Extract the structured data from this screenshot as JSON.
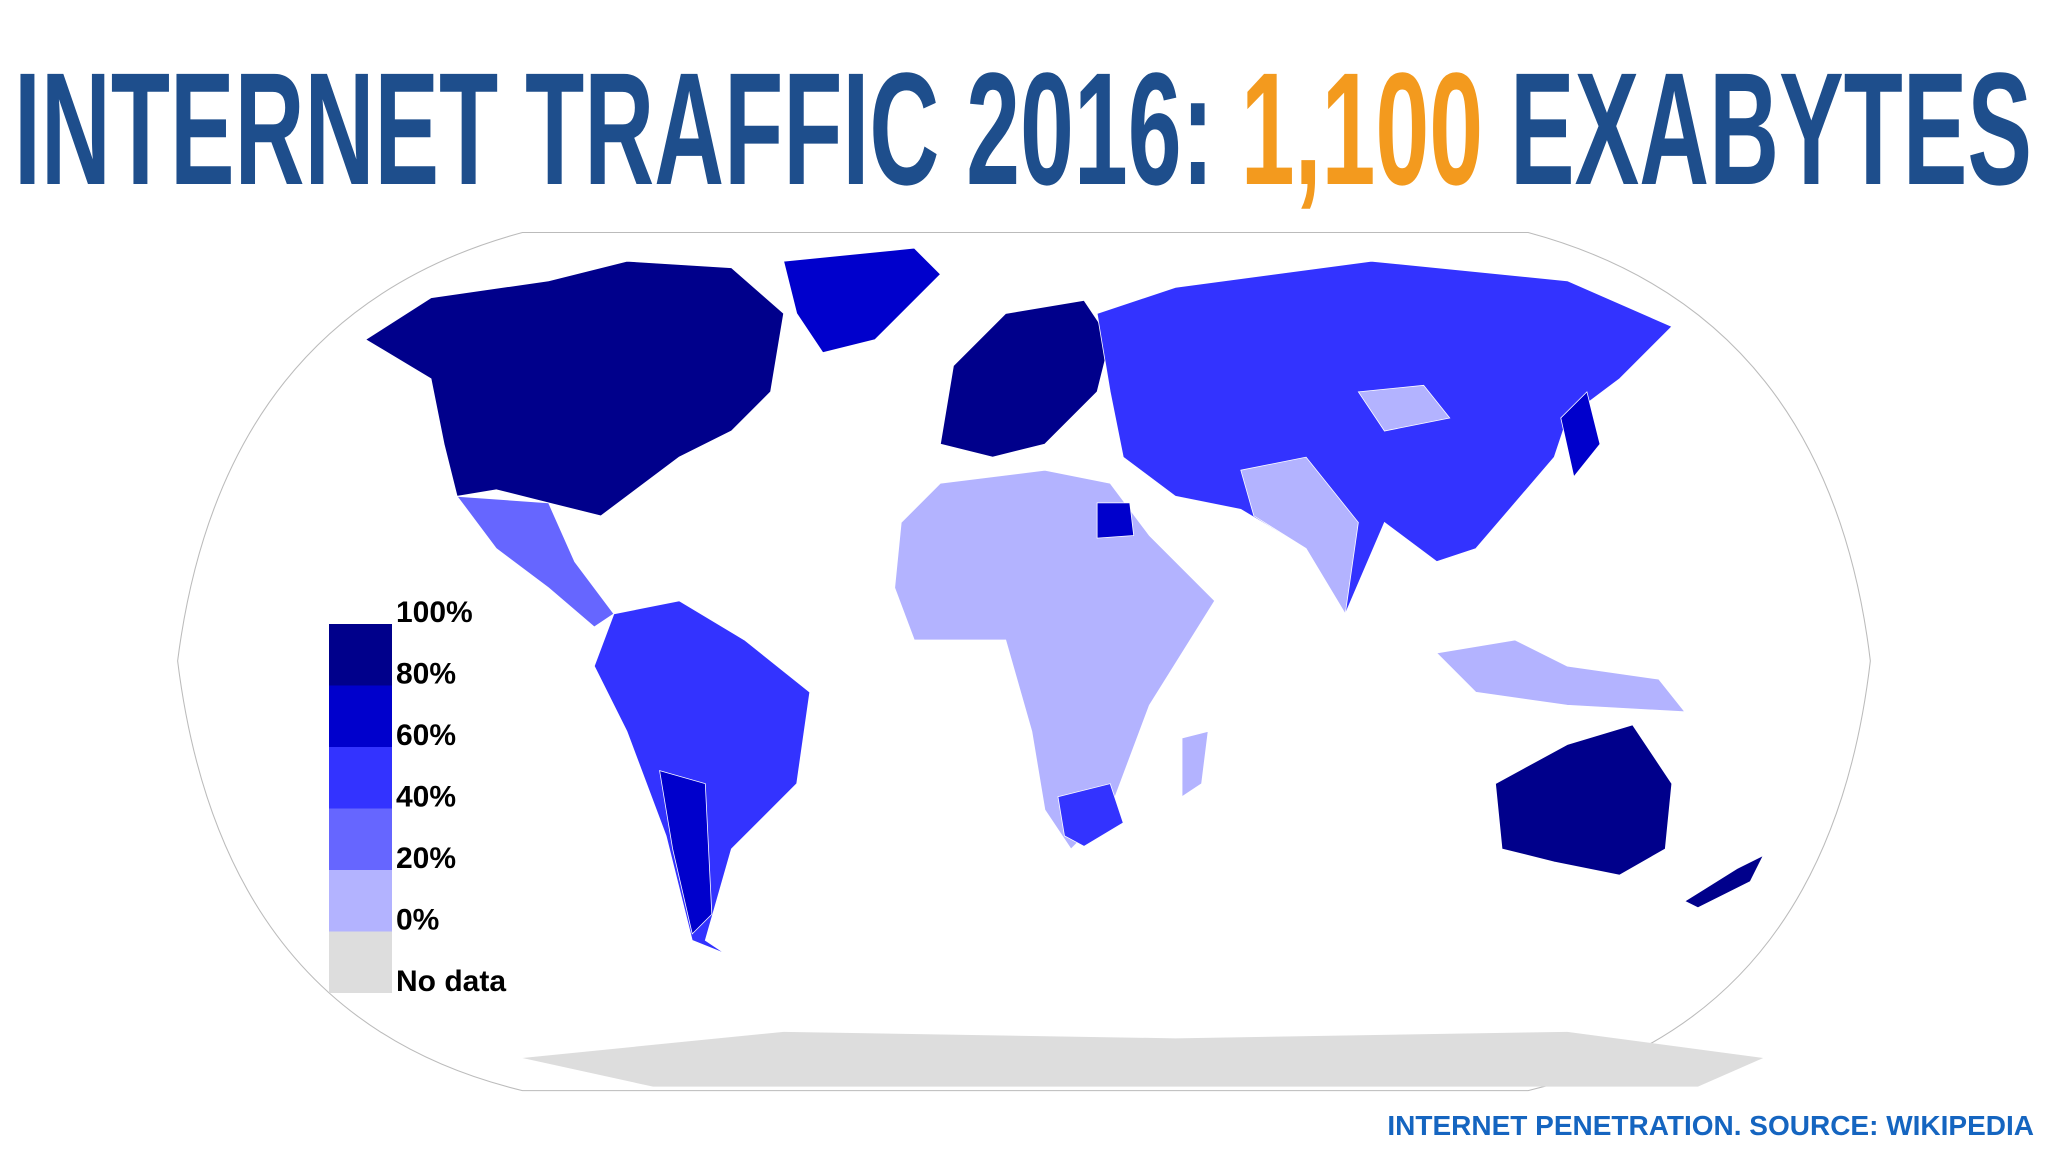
{
  "title": {
    "part1": "INTERNET TRAFFIC 2016:",
    "figure": "1,100",
    "part2": "EXABYTES"
  },
  "legend": {
    "labels": [
      "100%",
      "80%",
      "60%",
      "40%",
      "20%",
      "0%",
      "No data"
    ],
    "colors": [
      "#00008b",
      "#0000cc",
      "#3333ff",
      "#6666ff",
      "#b3b3ff",
      "#dddddd"
    ]
  },
  "source": "INTERNET PENETRATION. SOURCE: WIKIPEDIA"
}
